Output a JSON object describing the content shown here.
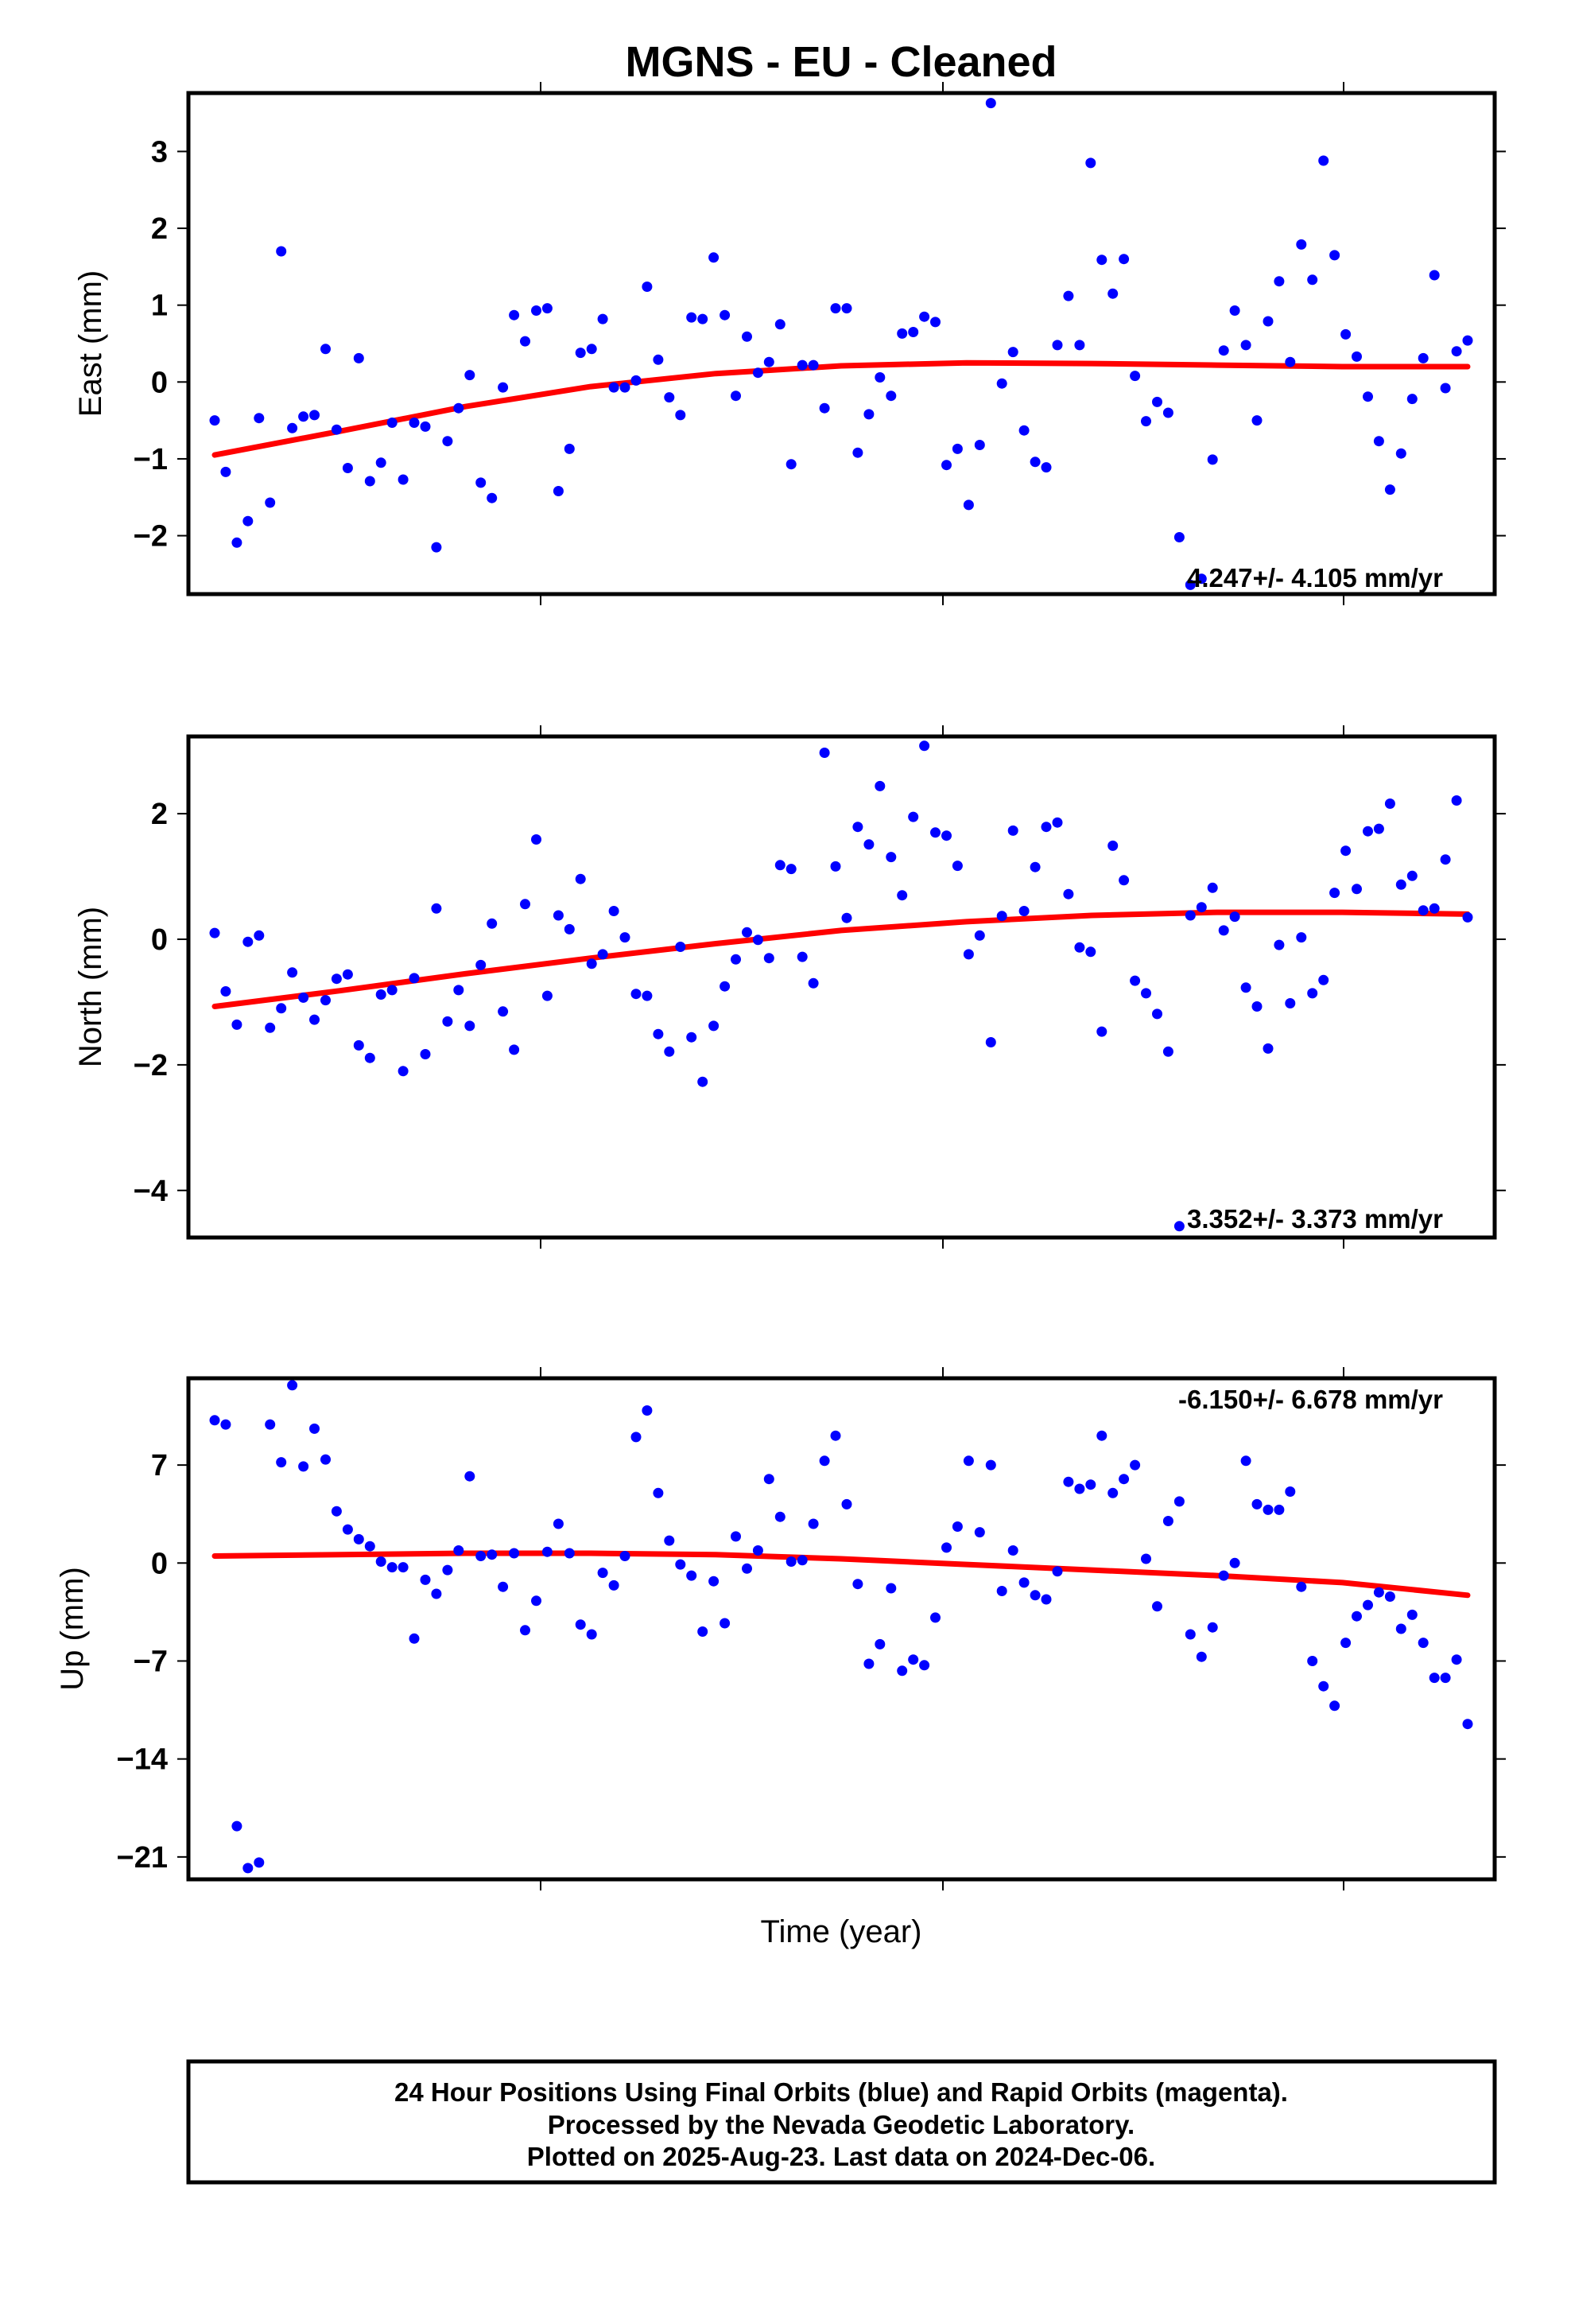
{
  "title": "MGNS  - EU - Cleaned",
  "footer": {
    "line1": "24 Hour Positions Using Final Orbits (blue) and Rapid Orbits (magenta).",
    "line2": "Processed by the Nevada Geodetic Laboratory.",
    "line3": "Plotted on 2025-Aug-23. Last data on 2024-Dec-06."
  },
  "colors": {
    "points": "#0000ff",
    "fit": "#ff0000",
    "frame": "#000000"
  },
  "chart_data": [
    {
      "type": "scatter",
      "ylabel": "East (mm)",
      "xlabel": "",
      "ylim": [
        -2.76,
        3.76
      ],
      "yticks": [
        -2,
        -1,
        0,
        1,
        2,
        3
      ],
      "ytick_labels": [
        "−2",
        "−1",
        "0",
        "1",
        "2",
        "3"
      ],
      "rate_text": "4.247+/- 4.105 mm/yr",
      "series": [
        {
          "values": [
            -0.5,
            -1.17,
            -2.09,
            -1.81,
            -0.47,
            -1.57,
            1.7,
            -0.6,
            -0.45,
            -0.43,
            0.43,
            -0.62,
            -1.12,
            0.31,
            -1.29,
            -1.05,
            -0.53,
            -1.27,
            -0.53,
            -0.58,
            -2.15,
            -0.77,
            -0.34,
            0.09,
            -1.31,
            -1.51,
            -0.07,
            0.87,
            0.53,
            0.93,
            0.96,
            -1.42,
            -0.87,
            0.38,
            0.43,
            0.82,
            -0.07,
            -0.07,
            0.02,
            1.24,
            0.29,
            -0.2,
            -0.43,
            0.84,
            0.82,
            1.62,
            0.87,
            -0.18,
            0.59,
            0.12,
            0.26,
            0.75,
            -1.07,
            0.22,
            0.22,
            -0.34,
            0.96,
            0.96,
            -0.92,
            -0.42,
            0.06,
            -0.18,
            0.63,
            0.65,
            0.85,
            0.78,
            -1.08,
            -0.87,
            -1.6,
            -0.82,
            3.63,
            -0.02,
            0.39,
            -0.63,
            -1.04,
            -1.11,
            0.48,
            1.12,
            0.48,
            2.85,
            1.59,
            1.15,
            1.6,
            0.08,
            -0.51,
            -0.26,
            -0.4,
            -2.02,
            -2.64,
            -2.56,
            -1.01,
            0.41,
            0.93,
            0.48,
            -0.5,
            0.79,
            1.31,
            0.26,
            1.79,
            1.33,
            2.88,
            1.65,
            0.62,
            0.33,
            -0.19,
            -0.77,
            -1.4,
            -0.93,
            -0.22,
            0.31,
            1.39,
            -0.08,
            0.4,
            0.54
          ]
        }
      ],
      "fit": {
        "x": [
          0,
          0.1,
          0.2,
          0.3,
          0.4,
          0.5,
          0.6,
          0.7,
          0.8,
          0.9,
          1.0
        ],
        "y": [
          -0.95,
          -0.64,
          -0.32,
          -0.06,
          0.11,
          0.21,
          0.25,
          0.24,
          0.22,
          0.2,
          0.2
        ]
      }
    },
    {
      "type": "scatter",
      "ylabel": "North (mm)",
      "xlabel": "",
      "ylim": [
        -4.75,
        3.23
      ],
      "yticks": [
        -4,
        -2,
        0,
        2
      ],
      "ytick_labels": [
        "−4",
        "−2",
        "0",
        "2"
      ],
      "rate_text": "3.352+/- 3.373 mm/yr",
      "series": [
        {
          "values": [
            0.1,
            -0.83,
            -1.36,
            -0.04,
            0.06,
            -1.41,
            -1.1,
            -0.53,
            -0.93,
            -1.28,
            -0.97,
            -0.63,
            -0.56,
            -1.69,
            -1.89,
            -0.88,
            -0.81,
            -2.1,
            -0.62,
            -1.83,
            0.49,
            -1.31,
            -0.81,
            -1.38,
            -0.41,
            0.25,
            -1.15,
            -1.76,
            0.56,
            1.59,
            -0.9,
            0.38,
            0.16,
            0.96,
            -0.39,
            -0.24,
            0.45,
            0.03,
            -0.87,
            -0.9,
            -1.51,
            -1.79,
            -0.12,
            -1.56,
            -2.27,
            -1.38,
            -0.75,
            -0.32,
            0.11,
            -0.01,
            -0.3,
            1.18,
            1.12,
            -0.28,
            -0.7,
            2.97,
            1.16,
            0.34,
            1.79,
            1.51,
            2.44,
            1.31,
            0.7,
            1.95,
            3.08,
            1.7,
            1.65,
            1.17,
            -0.24,
            0.06,
            -1.64,
            0.37,
            1.73,
            0.45,
            1.15,
            1.79,
            1.86,
            0.72,
            -0.13,
            -0.2,
            -1.47,
            1.49,
            0.94,
            -0.66,
            -0.86,
            -1.19,
            -1.79,
            -4.57,
            0.38,
            0.51,
            0.82,
            0.14,
            0.36,
            -0.77,
            -1.07,
            -1.74,
            -0.09,
            -1.02,
            0.03,
            -0.86,
            -0.65,
            0.74,
            1.41,
            0.8,
            1.72,
            1.76,
            2.16,
            0.87,
            1.01,
            0.46,
            0.49,
            1.27,
            2.21,
            0.35
          ]
        }
      ],
      "fit": {
        "x": [
          0,
          0.1,
          0.2,
          0.3,
          0.4,
          0.5,
          0.6,
          0.7,
          0.8,
          0.9,
          1.0
        ],
        "y": [
          -1.07,
          -0.82,
          -0.55,
          -0.3,
          -0.07,
          0.14,
          0.28,
          0.38,
          0.43,
          0.43,
          0.4
        ]
      }
    },
    {
      "type": "scatter",
      "ylabel": "Up (mm)",
      "xlabel": "Time (year)",
      "ylim": [
        -22.6,
        13.2
      ],
      "yticks": [
        -21,
        -14,
        -7,
        0,
        7
      ],
      "ytick_labels": [
        "−21",
        "−14",
        "−7",
        "0",
        "7"
      ],
      "rate_text": "-6.150+/- 6.678 mm/yr",
      "series": [
        {
          "values": [
            10.2,
            9.9,
            -18.8,
            -21.8,
            -21.4,
            9.9,
            7.2,
            12.7,
            6.9,
            9.6,
            7.4,
            3.7,
            2.4,
            1.7,
            1.2,
            0.1,
            -0.3,
            -0.3,
            -5.4,
            -1.2,
            -2.2,
            -0.5,
            0.9,
            6.2,
            0.5,
            0.6,
            -1.7,
            0.7,
            -4.8,
            -2.7,
            0.8,
            2.8,
            0.7,
            -4.4,
            -5.1,
            -0.7,
            -1.6,
            0.5,
            9.0,
            10.9,
            5.0,
            1.6,
            -0.1,
            -0.9,
            -4.9,
            -1.3,
            -4.3,
            1.9,
            -0.4,
            0.9,
            6.0,
            3.3,
            0.1,
            0.2,
            2.8,
            7.3,
            9.1,
            4.2,
            -1.5,
            -7.2,
            -5.8,
            -1.8,
            -7.7,
            -6.9,
            -7.3,
            -3.9,
            1.1,
            2.6,
            7.3,
            2.2,
            7.0,
            -2.0,
            0.9,
            -1.4,
            -2.3,
            -2.6,
            -0.6,
            5.8,
            5.3,
            5.6,
            9.1,
            5.0,
            6.0,
            7.0,
            0.3,
            -3.1,
            3.0,
            4.4,
            -5.1,
            -6.7,
            -4.6,
            -0.9,
            0.0,
            7.3,
            4.2,
            3.8,
            3.8,
            5.1,
            -1.7,
            -7.0,
            -8.8,
            -10.2,
            -5.7,
            -3.8,
            -3.0,
            -2.1,
            -2.4,
            -4.7,
            -3.7,
            -5.7,
            -8.2,
            -8.2,
            -6.9,
            -11.5
          ]
        }
      ],
      "fit": {
        "x": [
          0,
          0.1,
          0.2,
          0.3,
          0.4,
          0.5,
          0.6,
          0.7,
          0.8,
          0.9,
          1.0
        ],
        "y": [
          0.5,
          0.6,
          0.7,
          0.7,
          0.6,
          0.3,
          -0.1,
          -0.5,
          -0.9,
          -1.4,
          -2.3
        ]
      }
    }
  ]
}
